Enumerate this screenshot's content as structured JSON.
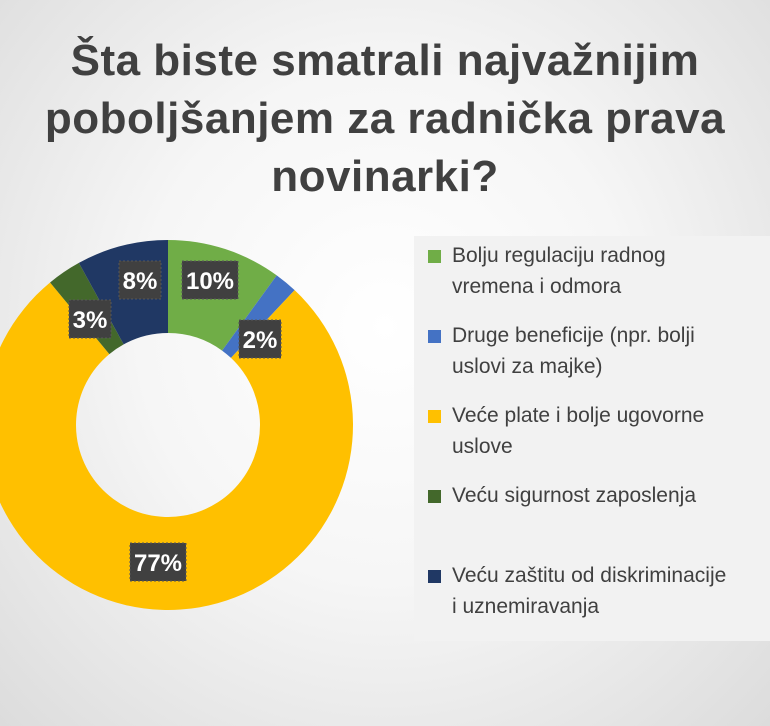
{
  "title": "Šta biste smatrali najvažnijim\npoboljšanjem za radnička prava\nnovinarki?",
  "chart_data": {
    "type": "pie",
    "donut": true,
    "title": "Šta biste smatrali najvažnijim poboljšanjem za radnička prava novinarki?",
    "legend_position": "right",
    "slices": [
      {
        "name": "Bolju regulaciju radnog\nvremena i odmora",
        "value": 10,
        "label": "10%",
        "color": "#70ad47"
      },
      {
        "name": "Druge beneficije (npr. bolji\nuslovi za majke)",
        "value": 2,
        "label": "2%",
        "color": "#4472c4"
      },
      {
        "name": "Veće plate i bolje ugovorne\nuslove",
        "value": 77,
        "label": "77%",
        "color": "#ffc000"
      },
      {
        "name": "Veću sigurnost zaposlenja",
        "value": 3,
        "label": "3%",
        "color": "#43682b"
      },
      {
        "name": "Veću zaštitu od diskriminacije\ni uznemiravanja",
        "value": 8,
        "label": "8%",
        "color": "#203864"
      }
    ]
  }
}
